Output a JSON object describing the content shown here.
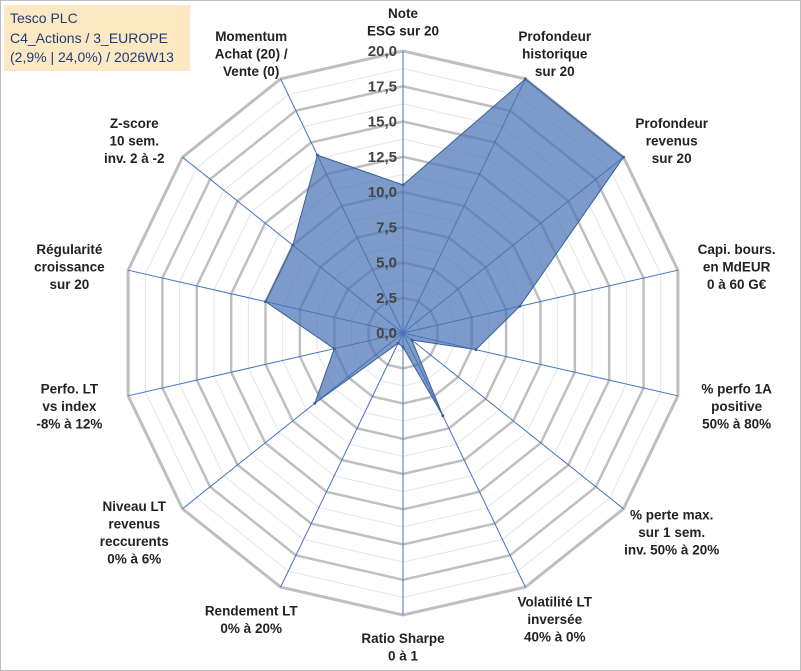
{
  "title_box": {
    "line1": "Tesco PLC",
    "line2": "C4_Actions / 3_EUROPE",
    "line3": "(2,9% | 24,0%) / 2026W13"
  },
  "chart_data": {
    "type": "radar",
    "title": "Tesco PLC",
    "rlim": [
      0,
      20
    ],
    "ticks": [
      0,
      2.5,
      5,
      7.5,
      10,
      12.5,
      15,
      17.5,
      20
    ],
    "tick_labels": [
      "0,0",
      "2,5",
      "5,0",
      "7,5",
      "10,0",
      "12,5",
      "15,0",
      "17,5",
      "20,0"
    ],
    "axes": [
      {
        "label": [
          "Note",
          "ESG sur 20"
        ],
        "value": 10.5
      },
      {
        "label": [
          "Profondeur",
          "historique",
          "sur 20"
        ],
        "value": 20
      },
      {
        "label": [
          "Profondeur",
          "revenus",
          "sur 20"
        ],
        "value": 20
      },
      {
        "label": [
          "Capi. bours.",
          "en MdEUR",
          "0 à 60 G€"
        ],
        "value": 8.5
      },
      {
        "label": [
          "% perfo 1A",
          "positive",
          "50% à 80%"
        ],
        "value": 5.3
      },
      {
        "label": [
          "% perte max.",
          "sur 1 sem.",
          "inv. 50% à 20%"
        ],
        "value": 0.8
      },
      {
        "label": [
          "Volatilité LT",
          "inversée",
          "40% à 0%"
        ],
        "value": 6.5
      },
      {
        "label": [
          "Ratio Sharpe",
          "0 à 1"
        ],
        "value": 1.0
      },
      {
        "label": [
          "Rendement LT",
          "0% à 20%"
        ],
        "value": 0.8
      },
      {
        "label": [
          "Niveau LT",
          "revenus",
          "reccurents",
          "0% à 6%"
        ],
        "value": 8.0
      },
      {
        "label": [
          "Perfo. LT",
          "vs index",
          "-8% à 12%"
        ],
        "value": 5.0
      },
      {
        "label": [
          "Régularité",
          "croissance",
          "sur 20"
        ],
        "value": 10.0
      },
      {
        "label": [
          "Z-score",
          "10 sem.",
          "inv. 2 à -2"
        ],
        "value": 10.0
      },
      {
        "label": [
          "Momentum",
          "Achat (20) /",
          "Vente (0)"
        ],
        "value": 14.0
      }
    ],
    "series": [
      {
        "name": "Tesco PLC",
        "color": "#4a75b5"
      }
    ],
    "colors": {
      "grid": "#bfbfbf",
      "axis_line": "#4472c4",
      "fill": "#4a75b5"
    }
  }
}
